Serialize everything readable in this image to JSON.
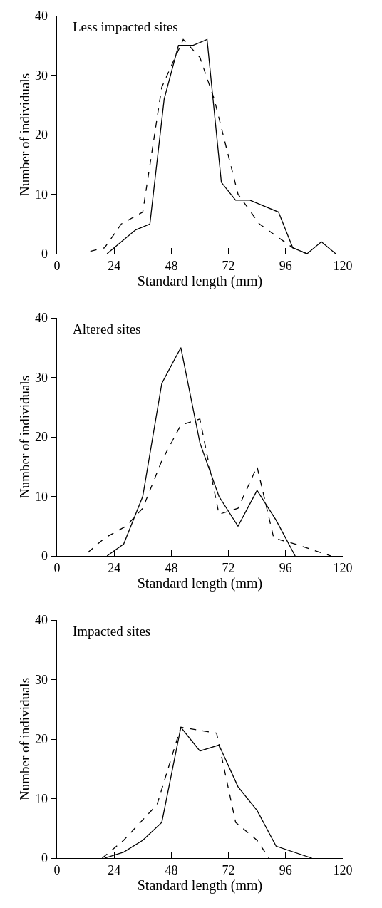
{
  "chart_data": [
    {
      "type": "line",
      "title": "Less impacted sites",
      "xlabel": "Standard length (mm)",
      "ylabel": "Number of individuals",
      "xlim": [
        0,
        120
      ],
      "xticks": [
        0,
        24,
        48,
        72,
        96,
        120
      ],
      "ylim": [
        0,
        40
      ],
      "yticks": [
        0,
        10,
        20,
        30,
        40
      ],
      "grid": false,
      "marker": "none",
      "series": [
        {
          "color": "#000000",
          "line_style": "solid",
          "x": [
            21,
            33,
            39,
            45,
            51,
            57,
            63,
            69,
            75,
            81,
            93,
            99,
            105,
            111,
            117
          ],
          "values": [
            0,
            4,
            5,
            26,
            35,
            35,
            36,
            12,
            9,
            9,
            7,
            1,
            0,
            2,
            0
          ]
        },
        {
          "color": "#000000",
          "line_style": "dashed",
          "x": [
            14,
            20,
            27,
            36,
            44,
            53,
            60,
            66,
            76,
            85,
            99,
            105
          ],
          "values": [
            0.4,
            1,
            5,
            7,
            28,
            36,
            33,
            26,
            10,
            5,
            1,
            0
          ]
        }
      ]
    },
    {
      "type": "line",
      "title": "Altered sites",
      "xlabel": "Standard length (mm)",
      "ylabel": "Number of individuals",
      "xlim": [
        0,
        120
      ],
      "xticks": [
        0,
        24,
        48,
        72,
        96,
        120
      ],
      "ylim": [
        0,
        40
      ],
      "yticks": [
        0,
        10,
        20,
        30,
        40
      ],
      "grid": false,
      "marker": "none",
      "series": [
        {
          "color": "#000000",
          "line_style": "solid",
          "x": [
            21,
            28,
            36,
            44,
            52,
            60,
            68,
            76,
            84,
            92,
            100
          ],
          "values": [
            0,
            2,
            10,
            29,
            35,
            19,
            10,
            5,
            11,
            6,
            0
          ]
        },
        {
          "color": "#000000",
          "line_style": "dashed",
          "x": [
            13,
            20,
            29,
            36,
            44,
            52,
            60,
            68,
            76,
            84,
            91,
            100,
            115
          ],
          "values": [
            0.6,
            3,
            5,
            8,
            16,
            22,
            23,
            7,
            8,
            15,
            3,
            2,
            0
          ]
        }
      ]
    },
    {
      "type": "line",
      "title": "Impacted sites",
      "xlabel": "Standard length (mm)",
      "ylabel": "Number of individuals",
      "xlim": [
        0,
        120
      ],
      "xticks": [
        0,
        24,
        48,
        72,
        96,
        120
      ],
      "ylim": [
        0,
        40
      ],
      "yticks": [
        0,
        10,
        20,
        30,
        40
      ],
      "grid": false,
      "marker": "none",
      "series": [
        {
          "color": "#000000",
          "line_style": "solid",
          "x": [
            20,
            28,
            36,
            44,
            52,
            60,
            68,
            76,
            84,
            92,
            107
          ],
          "values": [
            0,
            1,
            3,
            6,
            22,
            18,
            19,
            12,
            8,
            2,
            0
          ]
        },
        {
          "color": "#000000",
          "line_style": "dashed",
          "x": [
            19,
            28,
            42,
            52,
            67,
            75,
            84,
            89
          ],
          "values": [
            0,
            3,
            9,
            22,
            21,
            6,
            3,
            0
          ]
        }
      ]
    }
  ]
}
